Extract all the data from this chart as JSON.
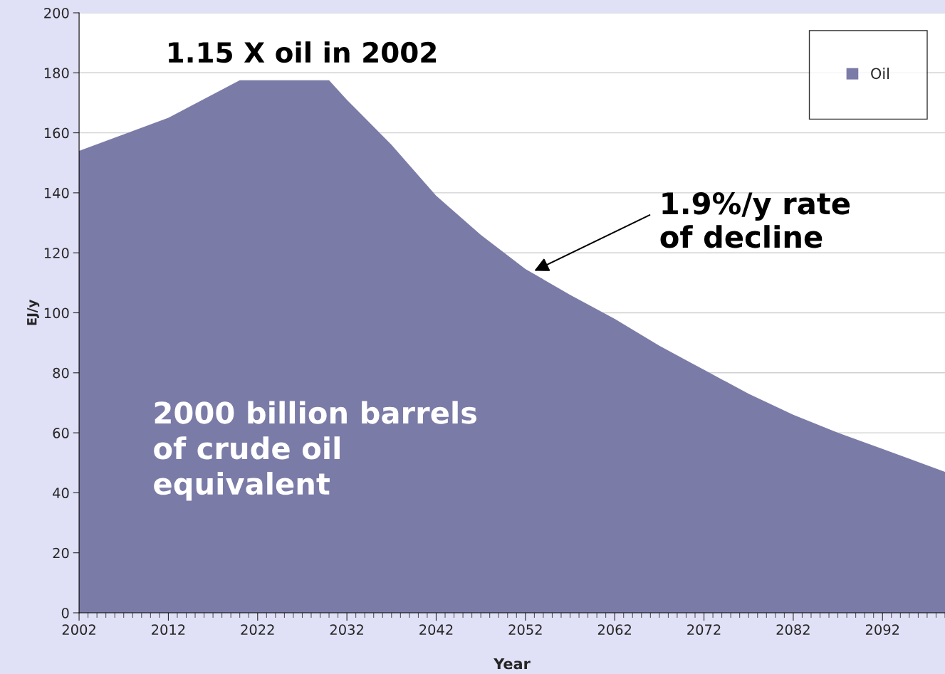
{
  "chart_data": {
    "type": "area",
    "xlabel": "Year",
    "ylabel": "EJ/y",
    "x": [
      2002,
      2012,
      2020,
      2030,
      2032,
      2037,
      2042,
      2047,
      2052,
      2057,
      2062,
      2067,
      2072,
      2077,
      2082,
      2087,
      2092,
      2099
    ],
    "series": [
      {
        "name": "Oil",
        "color": "#7b7ba8",
        "values": [
          154,
          165,
          177.5,
          177.5,
          171,
          156,
          139,
          126,
          114.6,
          106,
          98,
          89,
          81,
          73,
          66,
          60,
          54.6,
          47
        ]
      }
    ],
    "xlim": [
      2002,
      2099
    ],
    "xticks": [
      2002,
      2012,
      2022,
      2032,
      2042,
      2052,
      2062,
      2072,
      2082,
      2092
    ],
    "ylim": [
      0,
      200
    ],
    "yticks": [
      0,
      20,
      40,
      60,
      80,
      100,
      120,
      140,
      160,
      180,
      200
    ],
    "grid": "y",
    "legend": "top right",
    "annotations": [
      "1.15 X oil in 2002",
      {
        "text": "1.9%/y rate\nof decline",
        "x": 2053,
        "y": 114
      },
      "2000 billion barrels\nof crude oil\nequivalent"
    ]
  }
}
